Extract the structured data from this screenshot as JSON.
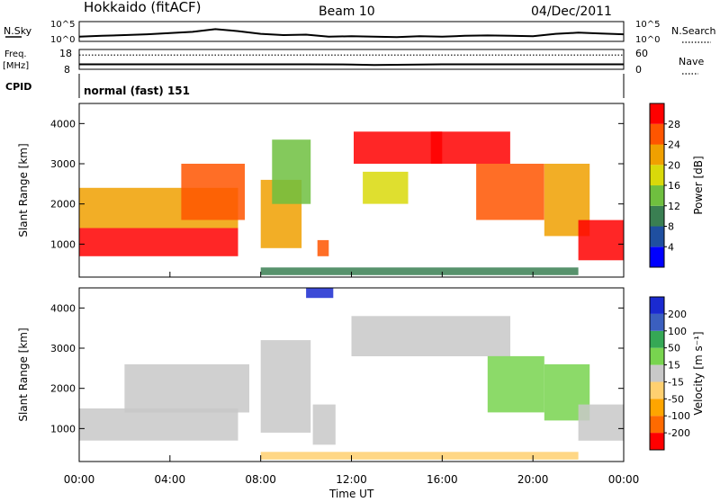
{
  "header": {
    "station": "Hokkaido (fitACF)",
    "beam": "Beam 10",
    "date": "04/Dec/2011"
  },
  "summary": {
    "nsky_label": "N.Sky",
    "nsearch_label": "N.Search",
    "counts_ticks": [
      "10^5",
      "10^0"
    ],
    "freq_label_top": "Freq.",
    "freq_label_unit": "[MHz]",
    "freq_ticks": [
      "18",
      "8"
    ],
    "nave_label": "Nave",
    "nave_ticks": [
      "60",
      "0"
    ],
    "cpid_label": "CPID",
    "cpid_value": "normal (fast) 151"
  },
  "colors": {
    "power_scale": [
      "#0000ff",
      "#1f4fa0",
      "#3a7f52",
      "#6fbf3f",
      "#d9d90a",
      "#f0a000",
      "#ff5500",
      "#ff0000"
    ],
    "velocity_scale": [
      "#ff0000",
      "#ff6a00",
      "#ffa500",
      "#ffd070",
      "#c8c8c8",
      "#78d44f",
      "#35a855",
      "#3b5fbf",
      "#1a2ad0"
    ],
    "velocity_gray": "#c8c8c8"
  },
  "chart_data": [
    {
      "type": "line",
      "title": "N.Sky / N.Search",
      "x": [
        "00:00",
        "01:00",
        "02:00",
        "03:00",
        "04:00",
        "05:00",
        "06:00",
        "07:00",
        "08:00",
        "09:00",
        "10:00",
        "11:00",
        "12:00",
        "13:00",
        "14:00",
        "15:00",
        "16:00",
        "17:00",
        "18:00",
        "19:00",
        "20:00",
        "21:00",
        "22:00",
        "23:00",
        "24:00"
      ],
      "series": [
        {
          "name": "N.Sky",
          "values": [
            1.2,
            1.4,
            1.6,
            1.8,
            2.1,
            2.4,
            3.1,
            2.6,
            1.9,
            1.6,
            1.7,
            1.2,
            1.3,
            1.2,
            1.1,
            1.3,
            1.2,
            1.4,
            1.5,
            1.4,
            1.3,
            1.9,
            2.2,
            2.0,
            1.8
          ]
        }
      ],
      "yticks": [
        "10^0",
        "10^5"
      ],
      "ylim": [
        0,
        5
      ]
    },
    {
      "type": "line",
      "title": "Freq. / Nave",
      "x": [
        "00:00",
        "04:00",
        "08:00",
        "10:00",
        "12:00",
        "13:00",
        "16:00",
        "20:00",
        "24:00"
      ],
      "series": [
        {
          "name": "Freq.",
          "values": [
            10.5,
            10.5,
            10.5,
            10.5,
            10.4,
            10.2,
            10.5,
            10.5,
            10.5
          ]
        },
        {
          "name": "Nave",
          "values": [
            43,
            43,
            43,
            43,
            43,
            43,
            43,
            43,
            43
          ]
        }
      ],
      "ylim_freq": [
        8,
        18
      ],
      "ylim_nave": [
        0,
        60
      ]
    },
    {
      "type": "heatmap",
      "xlabel": "",
      "ylabel": "Slant Range [km]",
      "xlim": [
        0,
        24
      ],
      "ylim": [
        180,
        4500
      ],
      "yticks": [
        "1000",
        "2000",
        "3000",
        "4000"
      ],
      "colorbar_label": "Power [dB]",
      "colorbar_ticks": [
        "4",
        "8",
        "12",
        "16",
        "20",
        "24",
        "28"
      ],
      "clim": [
        0,
        30
      ],
      "regions": [
        {
          "t0": 0.0,
          "t1": 7.0,
          "r0": 700,
          "r1": 1400,
          "value": 28
        },
        {
          "t0": 0.0,
          "t1": 7.0,
          "r0": 1400,
          "r1": 2400,
          "value": 22
        },
        {
          "t0": 4.5,
          "t1": 7.3,
          "r0": 1600,
          "r1": 3000,
          "value": 26
        },
        {
          "t0": 8.0,
          "t1": 9.8,
          "r0": 900,
          "r1": 2600,
          "value": 20
        },
        {
          "t0": 8.5,
          "t1": 10.2,
          "r0": 2000,
          "r1": 3600,
          "value": 14
        },
        {
          "t0": 10.5,
          "t1": 11.0,
          "r0": 700,
          "r1": 1100,
          "value": 25
        },
        {
          "t0": 12.1,
          "t1": 16.0,
          "r0": 3000,
          "r1": 3800,
          "value": 27
        },
        {
          "t0": 12.5,
          "t1": 14.5,
          "r0": 2000,
          "r1": 2800,
          "value": 16
        },
        {
          "t0": 15.5,
          "t1": 19.0,
          "r0": 3000,
          "r1": 3800,
          "value": 28
        },
        {
          "t0": 17.5,
          "t1": 20.5,
          "r0": 1600,
          "r1": 3000,
          "value": 24
        },
        {
          "t0": 20.5,
          "t1": 22.5,
          "r0": 1200,
          "r1": 3000,
          "value": 22
        },
        {
          "t0": 22.0,
          "t1": 24.0,
          "r0": 600,
          "r1": 1600,
          "value": 28
        },
        {
          "t0": 8.0,
          "t1": 22.0,
          "r0": 230,
          "r1": 420,
          "value": 10
        }
      ]
    },
    {
      "type": "heatmap",
      "xlabel": "Time UT",
      "ylabel": "Slant Range [km]",
      "xticks": [
        "00:00",
        "04:00",
        "08:00",
        "12:00",
        "16:00",
        "20:00",
        "00:00"
      ],
      "xlim": [
        0,
        24
      ],
      "ylim": [
        180,
        4500
      ],
      "yticks": [
        "1000",
        "2000",
        "3000",
        "4000"
      ],
      "colorbar_label": "Velocity [m s⁻¹]",
      "colorbar_ticks": [
        "200",
        "100",
        "50",
        "15",
        "-15",
        "-50",
        "-100",
        "-200"
      ],
      "clim": [
        -250,
        250
      ],
      "regions": [
        {
          "t0": 0.0,
          "t1": 7.0,
          "r0": 700,
          "r1": 1500,
          "value": 0
        },
        {
          "t0": 2.0,
          "t1": 7.5,
          "r0": 1400,
          "r1": 2600,
          "value": 0
        },
        {
          "t0": 8.0,
          "t1": 10.2,
          "r0": 900,
          "r1": 3200,
          "value": 0
        },
        {
          "t0": 10.3,
          "t1": 11.3,
          "r0": 600,
          "r1": 1600,
          "value": 0
        },
        {
          "t0": 12.0,
          "t1": 19.0,
          "r0": 2800,
          "r1": 3800,
          "value": 0
        },
        {
          "t0": 18.0,
          "t1": 20.5,
          "r0": 1400,
          "r1": 2800,
          "value": 40
        },
        {
          "t0": 20.5,
          "t1": 22.5,
          "r0": 1200,
          "r1": 2600,
          "value": 40
        },
        {
          "t0": 22.0,
          "t1": 24.0,
          "r0": 700,
          "r1": 1600,
          "value": 0
        },
        {
          "t0": 8.0,
          "t1": 22.0,
          "r0": 230,
          "r1": 420,
          "value": -30
        },
        {
          "t0": 10.0,
          "t1": 11.2,
          "r0": 4250,
          "r1": 4500,
          "value": 220
        }
      ]
    }
  ]
}
